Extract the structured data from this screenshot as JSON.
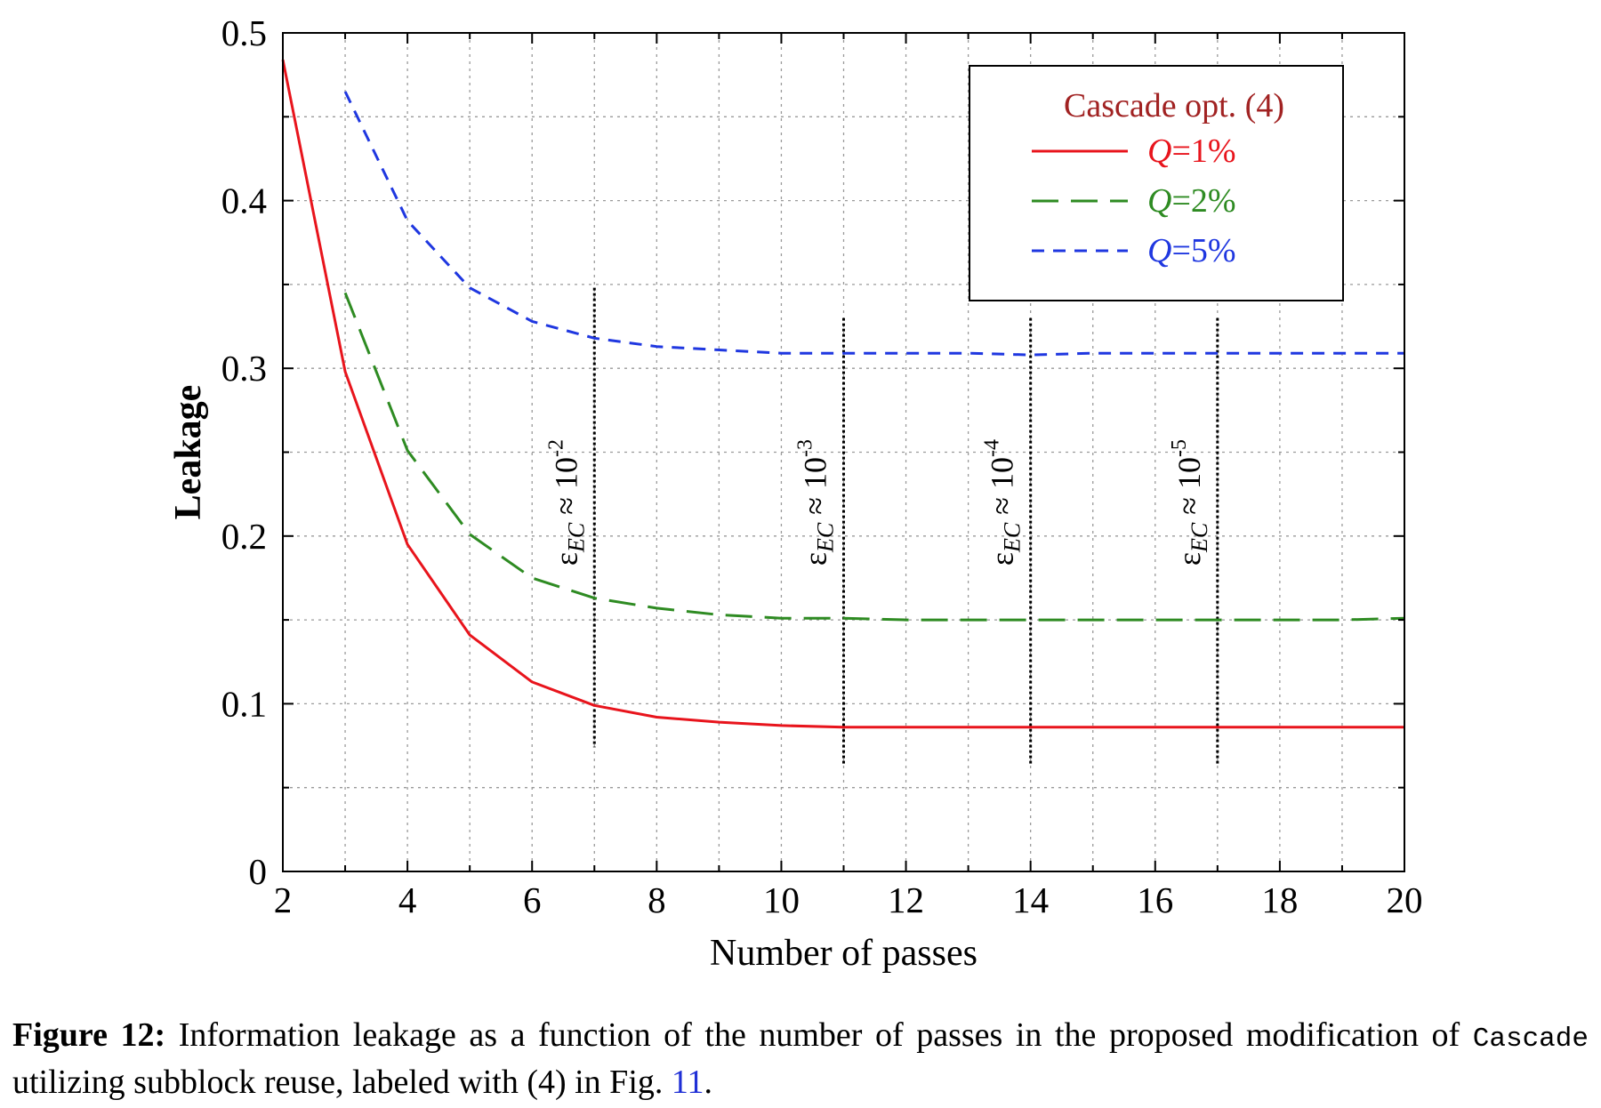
{
  "chart_data": {
    "type": "line",
    "xlabel": "Number of passes",
    "ylabel": "Leakage",
    "xlim": [
      2,
      20
    ],
    "ylim": [
      0,
      0.5
    ],
    "x_ticks": [
      "2",
      "4",
      "6",
      "8",
      "10",
      "12",
      "14",
      "16",
      "18",
      "20"
    ],
    "y_ticks": [
      "0",
      "0.1",
      "0.2",
      "0.3",
      "0.4",
      "0.5"
    ],
    "grid": true,
    "legend": {
      "title": "Cascade opt. (4)",
      "title_color": "#a12222",
      "placement": "top-right"
    },
    "series": [
      {
        "name": "Q=1%",
        "name_var": "Q",
        "name_rest": "=1%",
        "color": "#e8141c",
        "style": "solid",
        "x": [
          2,
          3,
          4,
          5,
          6,
          7,
          8,
          9,
          10,
          11,
          12,
          13,
          14,
          15,
          16,
          17,
          18,
          19,
          20
        ],
        "y": [
          0.484,
          0.298,
          0.195,
          0.141,
          0.113,
          0.099,
          0.092,
          0.089,
          0.087,
          0.086,
          0.086,
          0.086,
          0.086,
          0.086,
          0.086,
          0.086,
          0.086,
          0.086,
          0.086
        ]
      },
      {
        "name": "Q=2%",
        "name_var": "Q",
        "name_rest": "=2%",
        "color": "#2e8b22",
        "style": "long-dash",
        "x": [
          3,
          4,
          5,
          6,
          7,
          8,
          9,
          10,
          11,
          12,
          13,
          14,
          15,
          16,
          17,
          18,
          19,
          20
        ],
        "y": [
          0.345,
          0.251,
          0.201,
          0.175,
          0.163,
          0.157,
          0.153,
          0.151,
          0.151,
          0.15,
          0.15,
          0.15,
          0.15,
          0.15,
          0.15,
          0.15,
          0.15,
          0.151
        ]
      },
      {
        "name": "Q=5%",
        "name_var": "Q",
        "name_rest": "=5%",
        "color": "#1f37e0",
        "style": "short-dash",
        "x": [
          3,
          4,
          5,
          6,
          7,
          8,
          9,
          10,
          11,
          12,
          13,
          14,
          15,
          16,
          17,
          18,
          19,
          20
        ],
        "y": [
          0.465,
          0.388,
          0.348,
          0.328,
          0.318,
          0.313,
          0.311,
          0.309,
          0.309,
          0.309,
          0.309,
          0.308,
          0.309,
          0.309,
          0.309,
          0.309,
          0.309,
          0.309
        ]
      }
    ],
    "annotations": [
      {
        "x": 7,
        "y_range": [
          0.074,
          0.348
        ],
        "text_main": "ε",
        "text_sub": "EC",
        "text_mid": " ≈ 10",
        "text_exp": "-2"
      },
      {
        "x": 11,
        "y_range": [
          0.064,
          0.33
        ],
        "text_main": "ε",
        "text_sub": "EC",
        "text_mid": " ≈ 10",
        "text_exp": "-3"
      },
      {
        "x": 14,
        "y_range": [
          0.064,
          0.33
        ],
        "text_main": "ε",
        "text_sub": "EC",
        "text_mid": " ≈ 10",
        "text_exp": "-4"
      },
      {
        "x": 17,
        "y_range": [
          0.064,
          0.33
        ],
        "text_main": "ε",
        "text_sub": "EC",
        "text_mid": " ≈ 10",
        "text_exp": "-5"
      }
    ]
  },
  "caption": {
    "label": "Figure 12:",
    "text_before_code": " Information leakage as a function of the number of passes in the proposed modification of ",
    "code": "Cascade",
    "text_after_code": " utilizing subblock reuse, labeled with (4) in Fig. ",
    "ref": "11",
    "text_end": "."
  }
}
